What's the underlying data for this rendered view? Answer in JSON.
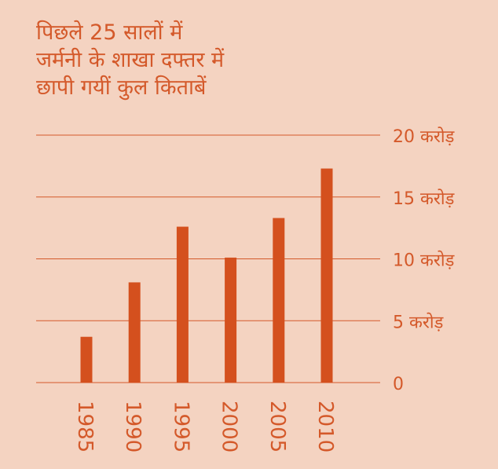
{
  "chart_data": {
    "type": "bar",
    "title_lines": [
      "पिछले 25 सालों में",
      "जर्मनी के शाखा दफ्तर में",
      "छापी गयीं कुल किताबें"
    ],
    "categories": [
      "1985",
      "1990",
      "1995",
      "2000",
      "2005",
      "2010"
    ],
    "values": [
      3.7,
      8.1,
      12.6,
      10.1,
      13.3,
      17.3
    ],
    "ylim": [
      0,
      20
    ],
    "y_ticks": [
      {
        "value": 0,
        "label": "0"
      },
      {
        "value": 5,
        "label": "5 करोड़"
      },
      {
        "value": 10,
        "label": "10 करोड़"
      },
      {
        "value": 15,
        "label": "15 करोड़"
      },
      {
        "value": 20,
        "label": "20 करोड़"
      }
    ],
    "grid": true,
    "xlabel": "",
    "ylabel": ""
  },
  "colors": {
    "background": "#f4d3c1",
    "bar": "#d4501e",
    "grid": "#d4592a",
    "text": "#d4592a"
  }
}
